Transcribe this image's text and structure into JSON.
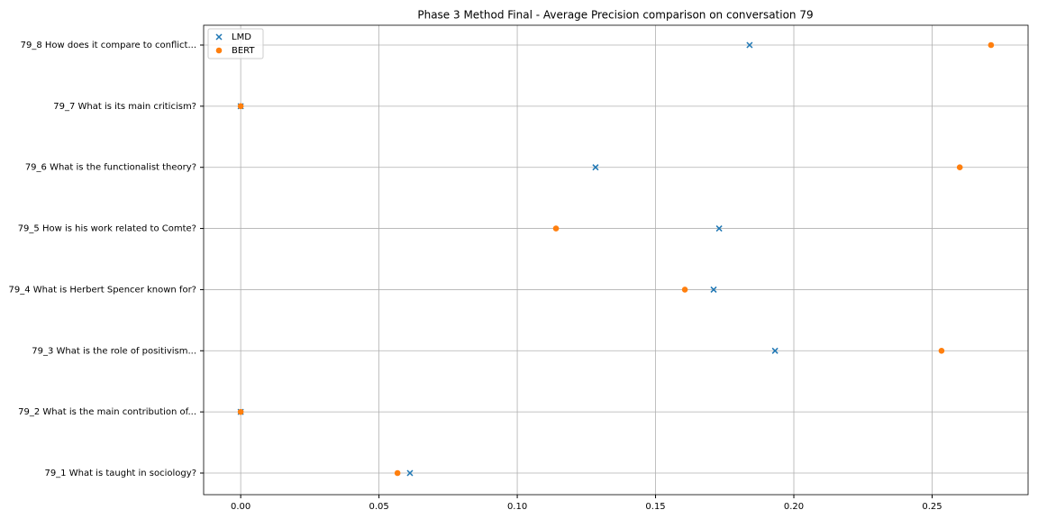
{
  "chart_data": {
    "type": "scatter",
    "title": "Phase 3 Method Final - Average Precision comparison on conversation 79",
    "categories": [
      "79_1 What is taught in sociology?",
      "79_2 What is the main contribution of...",
      "79_3 What is the role of positivism...",
      "79_4 What is Herbert Spencer known for?",
      "79_5 How is his work related to Comte?",
      "79_6 What is the functionalist theory?",
      "79_7 What is its main criticism?",
      "79_8 How does it compare to conflict..."
    ],
    "series": [
      {
        "name": "LMD",
        "color": "#1f77b4",
        "marker": "x",
        "values": [
          0.0612,
          0,
          0.1932,
          0.171,
          0.173,
          0.1283,
          0,
          0.184
        ]
      },
      {
        "name": "BERT",
        "color": "#ff7f0e",
        "marker": "o",
        "values": [
          0.0567,
          0,
          0.2534,
          0.1606,
          0.114,
          0.26,
          0,
          0.2713
        ]
      }
    ],
    "xlim": [
      -0.0134,
      0.2847
    ],
    "xticks": [
      {
        "value": 0,
        "label": "0.00"
      },
      0.05,
      {
        "value": 0.1,
        "label": "0.10"
      },
      0.15,
      {
        "value": 0.2,
        "label": "0.20"
      },
      0.25
    ],
    "grid": true,
    "legend": "upper left"
  }
}
